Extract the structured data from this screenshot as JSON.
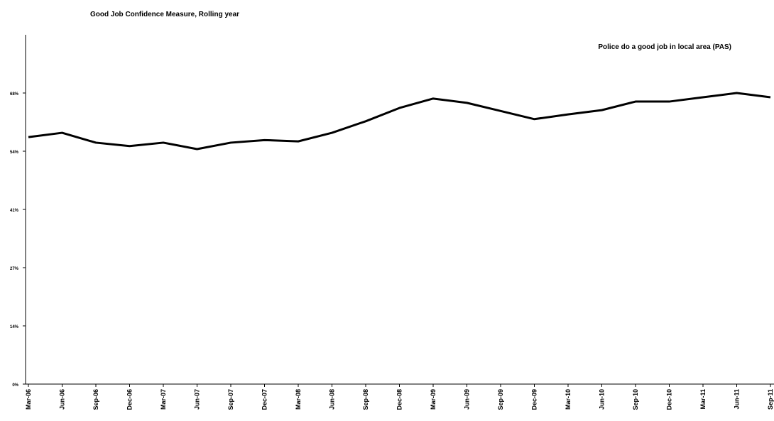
{
  "chart_data": {
    "type": "line",
    "title": "Good Job Confidence Measure, Rolling year",
    "categories": [
      "Mar-06",
      "Jun-06",
      "Sep-06",
      "Dec-06",
      "Mar-07",
      "Jun-07",
      "Sep-07",
      "Dec-07",
      "Mar-08",
      "Jun-08",
      "Sep-08",
      "Dec-08",
      "Mar-09",
      "Jun-09",
      "Sep-09",
      "Dec-09",
      "Mar-10",
      "Jun-10",
      "Sep-10",
      "Dec-10",
      "Mar-11",
      "Jun-11",
      "Sep-11"
    ],
    "series": [
      {
        "name": "Police do a good job in local area (PAS)",
        "color": "#000000",
        "values": [
          57.7,
          58.7,
          56.4,
          55.6,
          56.4,
          54.9,
          56.4,
          57.0,
          56.7,
          58.7,
          61.4,
          64.5,
          66.7,
          65.7,
          63.8,
          61.9,
          63.0,
          64.0,
          66.0,
          66.0,
          67.0,
          68.0,
          67.0
        ]
      }
    ],
    "ylim": [
      0,
      81.6
    ],
    "yticks": [
      {
        "value": 0,
        "label": "0%"
      },
      {
        "value": 13.6,
        "label": "14%"
      },
      {
        "value": 27.2,
        "label": "27%"
      },
      {
        "value": 40.8,
        "label": "41%"
      },
      {
        "value": 54.4,
        "label": "54%"
      },
      {
        "value": 68,
        "label": "68%"
      }
    ],
    "grid": false
  }
}
